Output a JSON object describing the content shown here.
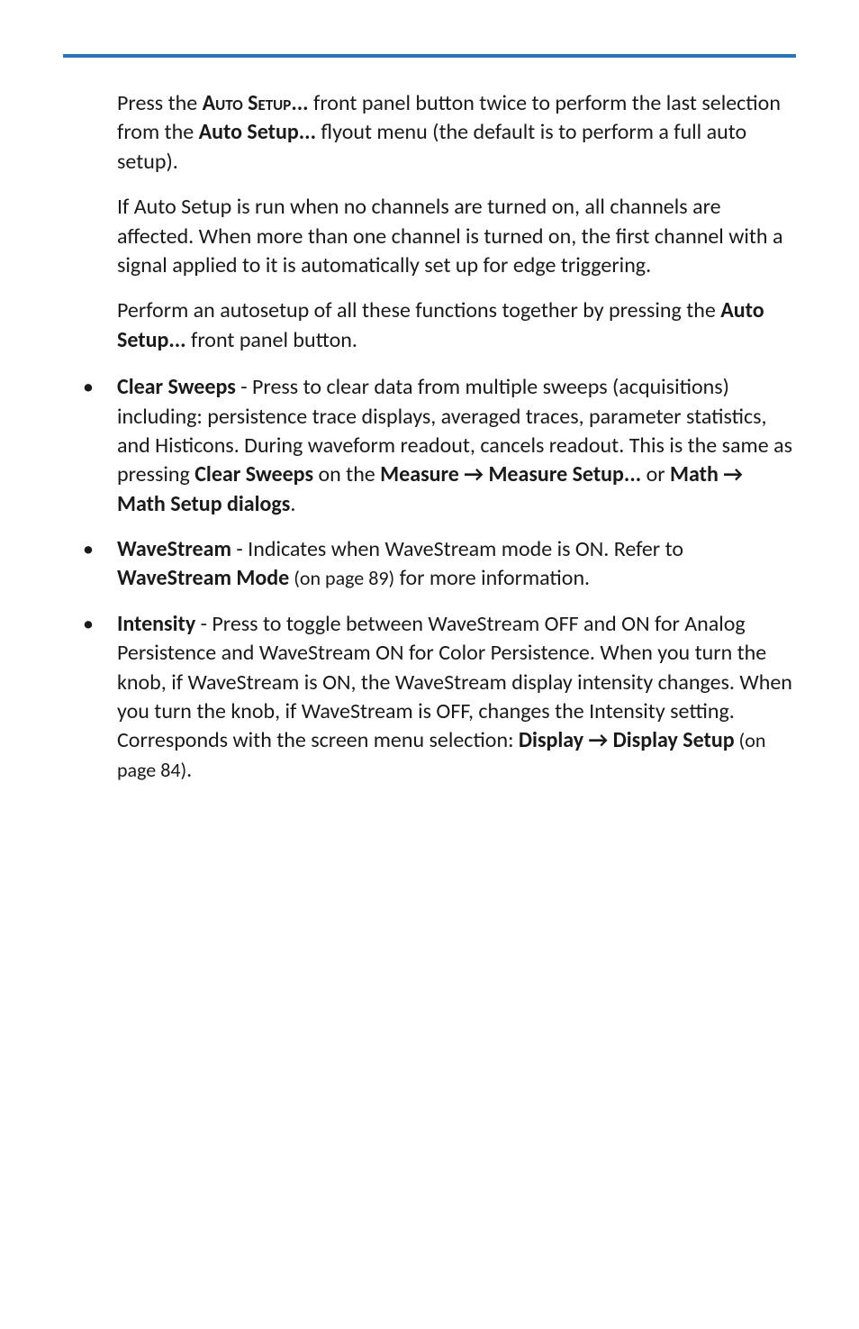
{
  "intro": {
    "p1_a": "Press the ",
    "p1_b": "Auto Setup...",
    "p1_c": " front panel button twice to perform the last selection from the ",
    "p1_d": "Auto Setup...",
    "p1_e": " flyout menu (the default is to perform a full auto setup).",
    "p2": "If Auto Setup is run when no channels are turned on, all channels are affected. When more than one channel is turned on, the first channel with a signal applied to it is automatically set up for edge triggering.",
    "p3_a": "Perform an autosetup of all these functions together by pressing the ",
    "p3_b": "Auto Setup...",
    "p3_c": " front panel button."
  },
  "bullets": {
    "b1": {
      "title": "Clear Sweeps",
      "text_a": " - Press to clear data from multiple sweeps (acquisitions) including: persistence trace displays, averaged traces, parameter statistics, and Histicons. During waveform readout, cancels readout. This is the same as pressing ",
      "bold_a": "Clear Sweeps",
      "text_b": " on the ",
      "bold_b": "Measure → Measure Setup...",
      "text_c": " or ",
      "bold_c": "Math → Math Setup dialogs",
      "text_d": "."
    },
    "b2": {
      "title": "WaveStream",
      "text_a": " - Indicates when WaveStream mode is ON. Refer to ",
      "bold_a": "WaveStream Mode",
      "small_a": " (on page 89)",
      "text_b": " for more information."
    },
    "b3": {
      "title": "Intensity",
      "text_a": " - Press to toggle between WaveStream OFF and ON for Analog Persistence and WaveStream ON for Color Persistence. When you turn the knob, if WaveStream is ON, the WaveStream display intensity changes. When you turn the knob, if WaveStream is OFF, changes the Intensity setting. Corresponds with the screen menu selection: ",
      "bold_a": "Display → Display Setup",
      "small_a": " (on page 84)",
      "text_b": "."
    }
  }
}
